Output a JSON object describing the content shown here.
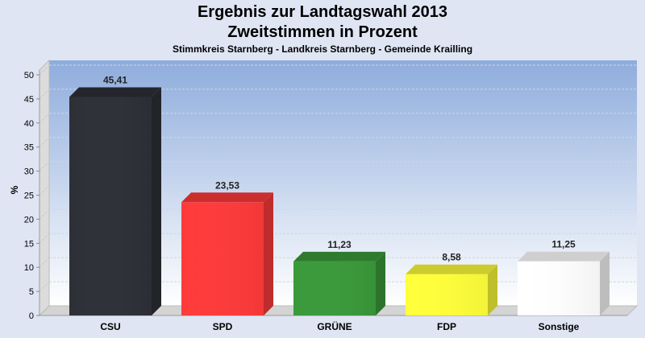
{
  "chart_data": {
    "type": "bar",
    "title": "Ergebnis zur Landtagswahl 2013",
    "subtitle": "Zweitstimmen in Prozent",
    "caption": "Stimmkreis Starnberg - Landkreis Starnberg - Gemeinde Krailling",
    "ylabel": "%",
    "xlabel": "",
    "ylim": [
      0,
      50
    ],
    "yticks": [
      0,
      5,
      10,
      15,
      20,
      25,
      30,
      35,
      40,
      45,
      50
    ],
    "categories": [
      "CSU",
      "SPD",
      "GRÜNE",
      "FDP",
      "Sonstige"
    ],
    "values": [
      45.41,
      23.53,
      11.23,
      8.58,
      11.25
    ],
    "value_labels": [
      "45,41",
      "23,53",
      "11,23",
      "8,58",
      "11,25"
    ],
    "colors": [
      "#2e3038",
      "#ff3a3a",
      "#3a9a3a",
      "#ffff3a",
      "#ffffff"
    ],
    "grid": true
  }
}
